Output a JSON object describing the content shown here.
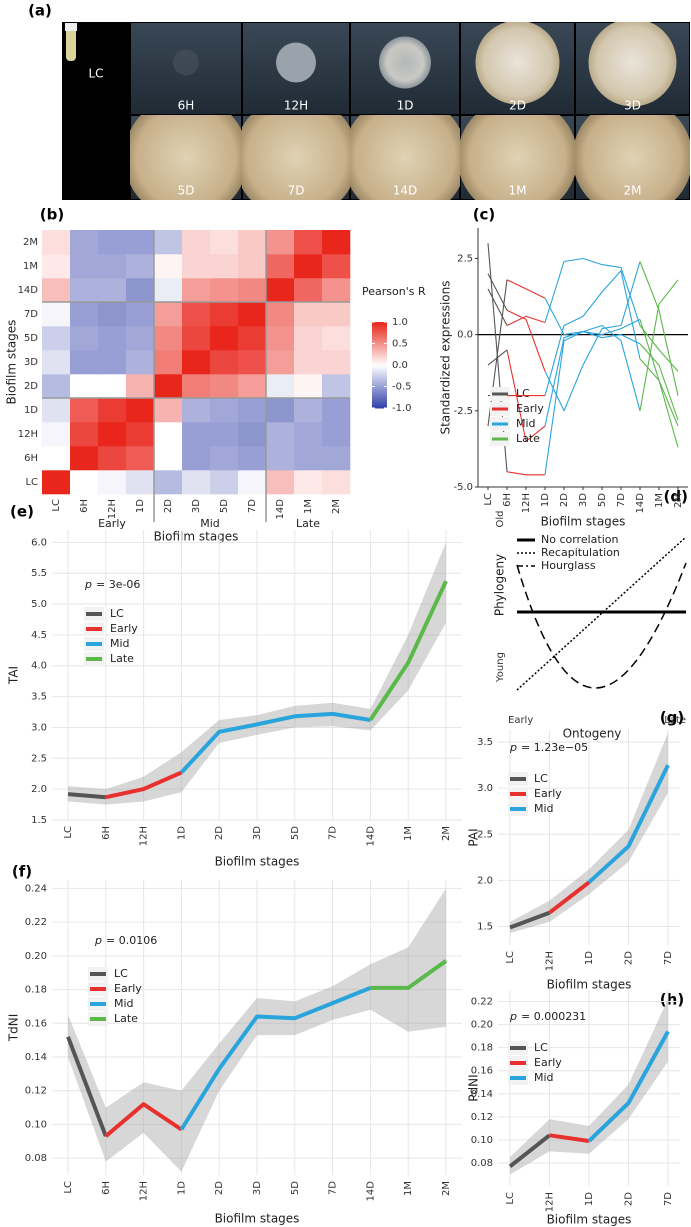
{
  "photos": {
    "label": "(a)",
    "stages": [
      "LC",
      "6H",
      "12H",
      "1D",
      "2D",
      "3D",
      "5D",
      "7D",
      "14D",
      "1M",
      "2M"
    ]
  },
  "diagram": {
    "label": "(d)",
    "y_top": "Old",
    "y_bottom": "Young",
    "y_title": "Phylogeny",
    "x_left": "Early",
    "x_right": "Late",
    "x_title": "Ontogeny",
    "legend": [
      "No correlation",
      "Recapitulation",
      "Hourglass"
    ]
  },
  "chart_data": [
    {
      "type": "heatmap",
      "panel_label": "(b)",
      "x_title": "Biofilm stages",
      "y_title": "Biofilm stages",
      "legend_title": "Pearson's R",
      "categories": [
        "LC",
        "6H",
        "12H",
        "1D",
        "2D",
        "3D",
        "5D",
        "7D",
        "14D",
        "1M",
        "2M"
      ],
      "groups": [
        {
          "name": "Early",
          "from": "6H",
          "to": "1D"
        },
        {
          "name": "Mid",
          "from": "2D",
          "to": "7D"
        },
        {
          "name": "Late",
          "from": "14D",
          "to": "2M"
        }
      ],
      "zlim": [
        -1,
        1
      ],
      "colorscale": [
        "#2f3ea8",
        "#ffffff",
        "#e8261c"
      ],
      "zticks": [
        {
          "value": 1,
          "label": "1.0"
        },
        0.5,
        {
          "value": 0,
          "label": "0.0"
        },
        -0.5,
        {
          "value": -1,
          "label": "-1.0"
        }
      ],
      "z": [
        [
          1,
          0.0,
          -0.05,
          -0.15,
          -0.35,
          -0.15,
          -0.25,
          -0.05,
          0.3,
          0.1,
          0.15
        ],
        [
          0.0,
          1,
          0.85,
          0.75,
          0.0,
          -0.5,
          -0.45,
          -0.5,
          -0.4,
          -0.45,
          -0.45
        ],
        [
          -0.05,
          0.85,
          1,
          0.9,
          0.0,
          -0.5,
          -0.5,
          -0.55,
          -0.4,
          -0.45,
          -0.5
        ],
        [
          -0.15,
          0.75,
          0.9,
          1,
          0.35,
          -0.4,
          -0.45,
          -0.5,
          -0.55,
          -0.4,
          -0.5
        ],
        [
          -0.35,
          0.0,
          0.0,
          0.35,
          1,
          0.6,
          0.55,
          0.45,
          -0.1,
          0.05,
          -0.3
        ],
        [
          -0.15,
          -0.5,
          -0.5,
          -0.4,
          0.6,
          1,
          0.85,
          0.8,
          0.45,
          0.2,
          0.2
        ],
        [
          -0.25,
          -0.45,
          -0.5,
          -0.45,
          0.55,
          0.85,
          1,
          0.9,
          0.5,
          0.2,
          0.15
        ],
        [
          -0.05,
          -0.5,
          -0.55,
          -0.5,
          0.45,
          0.8,
          0.9,
          1,
          0.55,
          0.25,
          0.25
        ],
        [
          0.3,
          -0.4,
          -0.4,
          -0.55,
          -0.1,
          0.45,
          0.5,
          0.55,
          1,
          0.7,
          0.5
        ],
        [
          0.1,
          -0.45,
          -0.45,
          -0.4,
          0.05,
          0.2,
          0.2,
          0.25,
          0.7,
          1,
          0.8
        ],
        [
          0.15,
          -0.45,
          -0.5,
          -0.5,
          -0.3,
          0.2,
          0.15,
          0.25,
          0.5,
          0.8,
          1
        ]
      ]
    },
    {
      "type": "line",
      "panel_label": "(c)",
      "x_title": "Biofilm stages",
      "y_title": "Standardized expressions",
      "categories": [
        "LC",
        "6H",
        "12H",
        "1D",
        "2D",
        "3D",
        "5D",
        "7D",
        "14D",
        "1M",
        "2M"
      ],
      "ylim": [
        -5,
        3.5
      ],
      "yticks": [
        {
          "value": -5,
          "label": "-5.0"
        },
        -2.5,
        {
          "value": 0,
          "label": "0.0"
        },
        2.5
      ],
      "hline": 0,
      "grid": false,
      "series": [
        {
          "name": "LC",
          "color": "#555555",
          "lines": [
            [
              3.0,
              -4.5,
              null,
              null,
              null,
              null,
              null,
              null,
              null,
              null,
              null
            ],
            [
              -3.0,
              1.8,
              null,
              null,
              null,
              null,
              null,
              null,
              null,
              null,
              null
            ],
            [
              1.5,
              0.3,
              null,
              null,
              null,
              null,
              null,
              null,
              null,
              null,
              null
            ],
            [
              -1.0,
              -0.5,
              null,
              null,
              null,
              null,
              null,
              null,
              null,
              null,
              null
            ],
            [
              2.0,
              0.8,
              null,
              null,
              null,
              null,
              null,
              null,
              null,
              null,
              null
            ],
            [
              -2.0,
              -2.0,
              null,
              null,
              null,
              null,
              null,
              null,
              null,
              null,
              null
            ]
          ]
        },
        {
          "name": "Early",
          "color": "#e8312f",
          "lines": [
            [
              null,
              -4.5,
              -4.6,
              -4.6,
              null,
              null,
              null,
              null,
              null,
              null,
              null
            ],
            [
              null,
              1.8,
              1.5,
              1.2,
              null,
              null,
              null,
              null,
              null,
              null,
              null
            ],
            [
              null,
              0.3,
              0.6,
              0.4,
              null,
              null,
              null,
              null,
              null,
              null,
              null
            ],
            [
              null,
              -0.5,
              -3.5,
              -3.0,
              null,
              null,
              null,
              null,
              null,
              null,
              null
            ],
            [
              null,
              0.8,
              0.5,
              -1.2,
              null,
              null,
              null,
              null,
              null,
              null,
              null
            ],
            [
              null,
              -2.0,
              -2.0,
              -2.0,
              null,
              null,
              null,
              null,
              null,
              null,
              null
            ]
          ]
        },
        {
          "name": "Mid",
          "color": "#2aa4dc",
          "lines": [
            [
              null,
              null,
              null,
              -4.6,
              -0.2,
              0.1,
              0.0,
              0.2,
              0.5,
              null,
              null
            ],
            [
              null,
              null,
              null,
              1.2,
              0.0,
              0.1,
              -0.1,
              0.0,
              -0.3,
              null,
              null
            ],
            [
              null,
              null,
              null,
              0.4,
              2.4,
              2.5,
              2.3,
              2.2,
              0.3,
              null,
              null
            ],
            [
              null,
              null,
              null,
              -3.0,
              -0.1,
              0.1,
              0.3,
              -0.2,
              -2.5,
              null,
              null
            ],
            [
              null,
              null,
              null,
              -1.2,
              -2.5,
              -1.0,
              0.2,
              0.3,
              2.4,
              null,
              null
            ],
            [
              null,
              null,
              null,
              -2.0,
              0.3,
              0.6,
              1.4,
              2.1,
              -0.8,
              null,
              null
            ]
          ]
        },
        {
          "name": "Late",
          "color": "#5bb84a",
          "lines": [
            [
              null,
              null,
              null,
              null,
              null,
              null,
              null,
              null,
              0.5,
              -1.5,
              -3.7
            ],
            [
              null,
              null,
              null,
              null,
              null,
              null,
              null,
              null,
              -0.3,
              -1.0,
              -2.8
            ],
            [
              null,
              null,
              null,
              null,
              null,
              null,
              null,
              null,
              0.3,
              -0.5,
              -1.2
            ],
            [
              null,
              null,
              null,
              null,
              null,
              null,
              null,
              null,
              -2.5,
              1.0,
              1.8
            ],
            [
              null,
              null,
              null,
              null,
              null,
              null,
              null,
              null,
              2.4,
              0.8,
              -2.0
            ],
            [
              null,
              null,
              null,
              null,
              null,
              null,
              null,
              null,
              -0.8,
              -1.5,
              -3.0
            ]
          ]
        }
      ]
    },
    {
      "type": "line",
      "panel_label": "(e)",
      "x_title": "Biofilm stages",
      "y_title": "TAI",
      "annotation": {
        "symbol": "p",
        "text": "= 3e-06"
      },
      "categories": [
        "LC",
        "6H",
        "12H",
        "1D",
        "2D",
        "3D",
        "5D",
        "7D",
        "14D",
        "1M",
        "2M"
      ],
      "ylim": [
        1.5,
        6.2
      ],
      "yticks": [
        1.5,
        {
          "value": 2,
          "label": "2.0"
        },
        2.5,
        {
          "value": 3,
          "label": "3.0"
        },
        3.5,
        {
          "value": 4,
          "label": "4.0"
        },
        4.5,
        {
          "value": 5,
          "label": "5.0"
        },
        5.5,
        {
          "value": 6,
          "label": "6.0"
        }
      ],
      "grid": true,
      "band_lower": [
        1.8,
        1.75,
        1.8,
        1.95,
        2.75,
        2.88,
        3.0,
        3.02,
        2.95,
        3.6,
        4.7
      ],
      "band_upper": [
        2.05,
        2.0,
        2.2,
        2.6,
        3.12,
        3.2,
        3.35,
        3.4,
        3.3,
        4.5,
        6.0
      ],
      "series": [
        {
          "name": "LC",
          "color": "#555555",
          "values": [
            1.92,
            1.87,
            null,
            null,
            null,
            null,
            null,
            null,
            null,
            null,
            null
          ]
        },
        {
          "name": "Early",
          "color": "#e8312f",
          "values": [
            null,
            1.87,
            2.0,
            2.27,
            null,
            null,
            null,
            null,
            null,
            null,
            null
          ]
        },
        {
          "name": "Mid",
          "color": "#2aa4dc",
          "values": [
            null,
            null,
            null,
            2.27,
            2.93,
            3.05,
            3.18,
            3.22,
            3.12,
            null,
            null
          ]
        },
        {
          "name": "Late",
          "color": "#5bb84a",
          "values": [
            null,
            null,
            null,
            null,
            null,
            null,
            null,
            null,
            3.12,
            4.05,
            5.37
          ]
        }
      ]
    },
    {
      "type": "line",
      "panel_label": "(f)",
      "x_title": "Biofilm stages",
      "y_title": "TdNI",
      "annotation": {
        "symbol": "p",
        "text": "= 0.0106"
      },
      "categories": [
        "LC",
        "6H",
        "12H",
        "1D",
        "2D",
        "3D",
        "5D",
        "7D",
        "14D",
        "1M",
        "2M"
      ],
      "ylim": [
        0.07,
        0.245
      ],
      "yticks": [
        0.08,
        {
          "value": 0.1,
          "label": "0.10"
        },
        0.12,
        0.14,
        0.16,
        0.18,
        {
          "value": 0.2,
          "label": "0.20"
        },
        0.22,
        0.24
      ],
      "grid": true,
      "band_lower": [
        0.14,
        0.078,
        0.095,
        0.072,
        0.12,
        0.153,
        0.153,
        0.162,
        0.168,
        0.155,
        0.158
      ],
      "band_upper": [
        0.165,
        0.11,
        0.125,
        0.12,
        0.148,
        0.175,
        0.173,
        0.182,
        0.195,
        0.205,
        0.24
      ],
      "series": [
        {
          "name": "LC",
          "color": "#555555",
          "values": [
            0.152,
            0.093,
            null,
            null,
            null,
            null,
            null,
            null,
            null,
            null,
            null
          ]
        },
        {
          "name": "Early",
          "color": "#e8312f",
          "values": [
            null,
            0.093,
            0.112,
            0.097,
            null,
            null,
            null,
            null,
            null,
            null,
            null
          ]
        },
        {
          "name": "Mid",
          "color": "#2aa4dc",
          "values": [
            null,
            null,
            null,
            0.097,
            0.133,
            0.164,
            0.163,
            0.172,
            0.181,
            null,
            null
          ]
        },
        {
          "name": "Late",
          "color": "#5bb84a",
          "values": [
            null,
            null,
            null,
            null,
            null,
            null,
            null,
            null,
            0.181,
            0.181,
            0.197
          ]
        }
      ]
    },
    {
      "type": "line",
      "panel_label": "(g)",
      "x_title": "Biofilm stages",
      "y_title": "PAI",
      "annotation": {
        "symbol": "p",
        "text": "= 1.23e−05"
      },
      "categories": [
        "LC",
        "12H",
        "1D",
        "2D",
        "7D"
      ],
      "ylim": [
        1.3,
        3.63
      ],
      "yticks": [
        1.5,
        {
          "value": 2,
          "label": "2.0"
        },
        2.5,
        {
          "value": 3,
          "label": "3.0"
        },
        3.5
      ],
      "grid": true,
      "band_lower": [
        1.43,
        1.55,
        1.85,
        2.2,
        2.95
      ],
      "band_upper": [
        1.55,
        1.78,
        2.12,
        2.55,
        3.6
      ],
      "series": [
        {
          "name": "LC",
          "color": "#555555",
          "values": [
            1.49,
            1.65,
            null,
            null,
            null
          ]
        },
        {
          "name": "Early",
          "color": "#e8312f",
          "values": [
            null,
            1.65,
            1.98,
            null,
            null
          ]
        },
        {
          "name": "Mid",
          "color": "#2aa4dc",
          "values": [
            null,
            null,
            1.98,
            2.37,
            3.25
          ]
        }
      ]
    },
    {
      "type": "line",
      "panel_label": "(h)",
      "x_title": "Biofilm stages",
      "y_title": "PdNI",
      "annotation": {
        "symbol": "p",
        "text": "= 0.000231"
      },
      "categories": [
        "LC",
        "12H",
        "1D",
        "2D",
        "7D"
      ],
      "ylim": [
        0.06,
        0.23
      ],
      "yticks": [
        0.08,
        {
          "value": 0.1,
          "label": "0.10"
        },
        0.12,
        0.14,
        0.16,
        0.18,
        {
          "value": 0.2,
          "label": "0.20"
        },
        0.22
      ],
      "grid": true,
      "band_lower": [
        0.07,
        0.09,
        0.088,
        0.118,
        0.168
      ],
      "band_upper": [
        0.085,
        0.118,
        0.112,
        0.148,
        0.222
      ],
      "series": [
        {
          "name": "LC",
          "color": "#555555",
          "values": [
            0.077,
            0.104,
            null,
            null,
            null
          ]
        },
        {
          "name": "Early",
          "color": "#e8312f",
          "values": [
            null,
            0.104,
            0.099,
            null,
            null
          ]
        },
        {
          "name": "Mid",
          "color": "#2aa4dc",
          "values": [
            null,
            null,
            0.099,
            0.132,
            0.194
          ]
        }
      ]
    }
  ]
}
